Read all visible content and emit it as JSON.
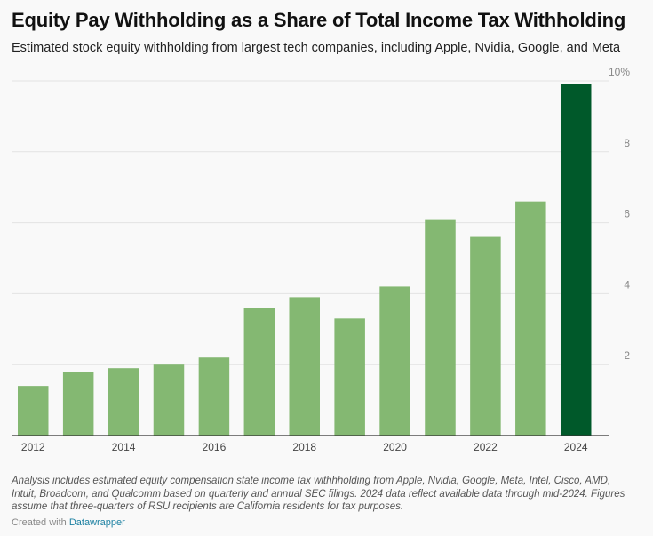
{
  "title": "Equity Pay Withholding as a Share of Total Income Tax Withholding",
  "subtitle": "Estimated stock equity withholding from largest tech companies, including Apple, Nvidia, Google, and Meta",
  "notes": "Analysis includes estimated equity compensation state income tax withhholding from Apple, Nvidia, Google, Meta, Intel, Cisco, AMD, Intuit, Broadcom, and Qualcomm based on quarterly and annual SEC filings. 2024 data reflect available data through mid-2024. Figures assume that three-quarters of RSU recipients are California residents for tax purposes.",
  "credit": {
    "prefix": "Created with",
    "link_label": "Datawrapper"
  },
  "colors": {
    "bar": "#84b872",
    "highlight": "#00592a",
    "grid": "#e3e3e3",
    "axis": "#333333"
  },
  "chart_data": {
    "type": "bar",
    "categories": [
      "2012",
      "2013",
      "2014",
      "2015",
      "2016",
      "2017",
      "2018",
      "2019",
      "2020",
      "2021",
      "2022",
      "2023",
      "2024"
    ],
    "values": [
      1.4,
      1.8,
      1.9,
      2.0,
      2.2,
      3.6,
      3.9,
      3.3,
      4.2,
      6.1,
      5.6,
      6.6,
      9.9
    ],
    "highlight_category": "2024",
    "x_tick_labels": [
      "2012",
      "2014",
      "2016",
      "2018",
      "2020",
      "2022",
      "2024"
    ],
    "y_ticks": [
      2,
      4,
      6,
      8,
      10
    ],
    "y_tick_labels": [
      "2",
      "4",
      "6",
      "8",
      "10%"
    ],
    "ylim": [
      0,
      10
    ],
    "grid": true,
    "y_axis_side": "right"
  }
}
